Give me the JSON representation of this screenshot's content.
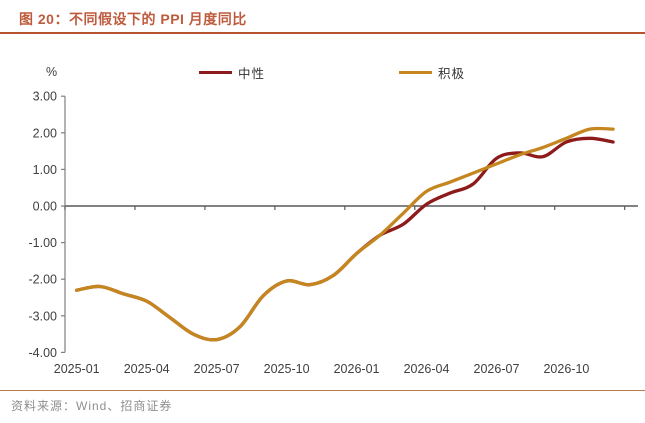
{
  "figure": {
    "title": "图 20：不同假设下的 PPI 月度同比",
    "source": "资料来源：Wind、招商证券"
  },
  "chart_data": {
    "type": "line",
    "title": "不同假设下的 PPI 月度同比",
    "ylabel": "%",
    "ylim": [
      -4.0,
      3.0
    ],
    "y_ticks": [
      3,
      2,
      1,
      0,
      -1,
      -2,
      -3,
      -4
    ],
    "y_tick_format": "0.00",
    "grid": false,
    "legend_position": "top",
    "x_tick_labels": [
      "2025-01",
      "2025-04",
      "2025-07",
      "2025-10",
      "2026-01",
      "2026-04",
      "2026-07",
      "2026-10"
    ],
    "x": [
      "2025-01",
      "2025-02",
      "2025-03",
      "2025-04",
      "2025-05",
      "2025-06",
      "2025-07",
      "2025-08",
      "2025-09",
      "2025-10",
      "2025-11",
      "2025-12",
      "2026-01",
      "2026-02",
      "2026-03",
      "2026-04",
      "2026-05",
      "2026-06",
      "2026-07",
      "2026-08",
      "2026-09",
      "2026-10",
      "2026-11",
      "2026-12"
    ],
    "series": [
      {
        "name": "中性",
        "color": "#8e1b1b",
        "values": [
          -2.3,
          -2.2,
          -2.4,
          -2.6,
          -3.05,
          -3.5,
          -3.65,
          -3.3,
          -2.45,
          -2.05,
          -2.15,
          -1.9,
          -1.3,
          -0.8,
          -0.5,
          0.05,
          0.35,
          0.6,
          1.3,
          1.45,
          1.35,
          1.75,
          1.85,
          1.75
        ]
      },
      {
        "name": "积极",
        "color": "#c5861f",
        "values": [
          -2.3,
          -2.2,
          -2.4,
          -2.6,
          -3.05,
          -3.5,
          -3.65,
          -3.3,
          -2.45,
          -2.05,
          -2.15,
          -1.9,
          -1.3,
          -0.8,
          -0.2,
          0.4,
          0.65,
          0.9,
          1.15,
          1.4,
          1.6,
          1.85,
          2.1,
          2.1
        ]
      }
    ],
    "colors": {
      "title_text": "#bf5b3d",
      "title_rule": "#b8522f",
      "axis": "#7f7f7f",
      "zero_line": "#595959",
      "tick_text": "#404040",
      "source_rule": "#bd7b52",
      "source_text": "#8f8f8f"
    }
  }
}
